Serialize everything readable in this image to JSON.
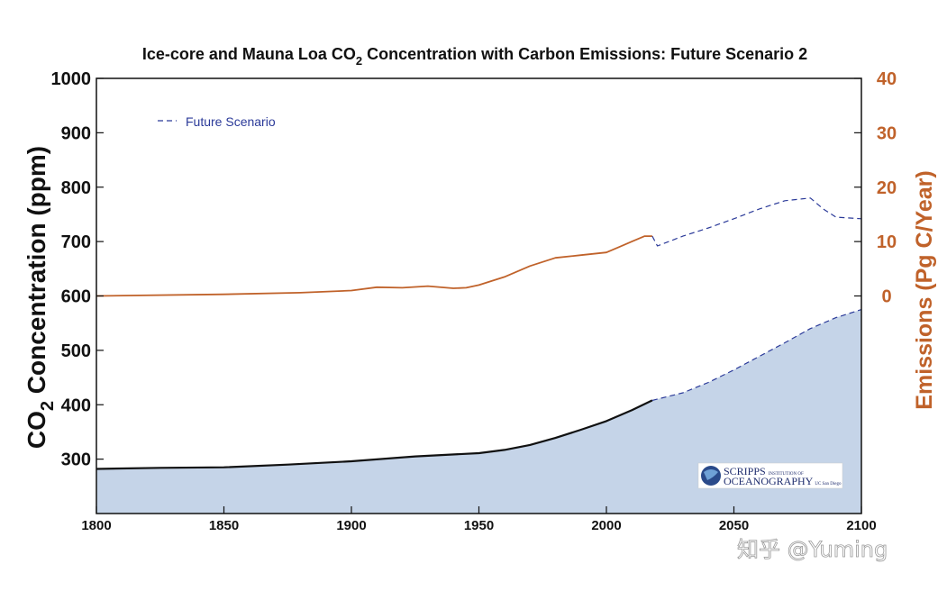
{
  "chart_data": {
    "type": "line",
    "title_main": "Ice-core and Mauna Loa CO",
    "title_sub": "2",
    "title_rest": " Concentration with Carbon Emissions: Future Scenario 2",
    "xlabel": "",
    "ylabel_left_a": "CO",
    "ylabel_left_sub": "2",
    "ylabel_left_b": " Concentration (ppm)",
    "ylabel_right": "Emissions (Pg C/Year)",
    "xlim": [
      1800,
      2100
    ],
    "ylim_left": [
      200,
      1000
    ],
    "ylim_right": [
      -40,
      40
    ],
    "x_ticks": [
      "1800",
      "1850",
      "1900",
      "1950",
      "2000",
      "2050",
      "2100"
    ],
    "y_left_ticks": [
      "300",
      "400",
      "500",
      "600",
      "700",
      "800",
      "900",
      "1000"
    ],
    "y_right_ticks": [
      "0",
      "10",
      "20",
      "30",
      "40"
    ],
    "legend": {
      "label": "Future Scenario",
      "placement": "top-left"
    },
    "colors": {
      "co2_observed": "#111111",
      "co2_fill": "#c5d4e8",
      "emissions": "#c0622a",
      "future": "#2b3a99",
      "axis": "#111111"
    },
    "series": [
      {
        "role": "co2_observed",
        "x": [
          1800,
          1825,
          1850,
          1875,
          1900,
          1925,
          1950,
          1960,
          1970,
          1980,
          1990,
          2000,
          2010,
          2018
        ],
        "values": [
          282,
          284,
          285,
          290,
          296,
          305,
          311,
          317,
          326,
          339,
          354,
          370,
          390,
          408
        ]
      },
      {
        "role": "co2_future",
        "x": [
          2018,
          2030,
          2040,
          2050,
          2060,
          2070,
          2080,
          2090,
          2100
        ],
        "values": [
          408,
          422,
          441,
          464,
          489,
          514,
          540,
          560,
          575
        ]
      },
      {
        "role": "emissions",
        "x": [
          1800,
          1850,
          1880,
          1900,
          1910,
          1920,
          1930,
          1940,
          1945,
          1950,
          1960,
          1970,
          1980,
          1990,
          2000,
          2005,
          2010,
          2015,
          2018
        ],
        "values": [
          0,
          0.3,
          0.6,
          1.0,
          1.6,
          1.5,
          1.8,
          1.4,
          1.5,
          2.0,
          3.5,
          5.5,
          7.0,
          7.5,
          8.0,
          9.0,
          10.0,
          11.0,
          11.0
        ]
      },
      {
        "role": "emissions_future",
        "x": [
          2018,
          2020,
          2030,
          2040,
          2050,
          2060,
          2070,
          2080,
          2085,
          2090,
          2100
        ],
        "values": [
          11.0,
          9.2,
          11.0,
          12.5,
          14.2,
          16.0,
          17.5,
          18.0,
          16.0,
          14.5,
          14.2
        ]
      }
    ]
  },
  "logo": {
    "line1": "SCRIPPS",
    "line1_small": "INSTITUTION OF",
    "line2": "OCEANOGRAPHY",
    "line2_small": "UC San Diego"
  },
  "watermark": "知乎 @Yuming"
}
